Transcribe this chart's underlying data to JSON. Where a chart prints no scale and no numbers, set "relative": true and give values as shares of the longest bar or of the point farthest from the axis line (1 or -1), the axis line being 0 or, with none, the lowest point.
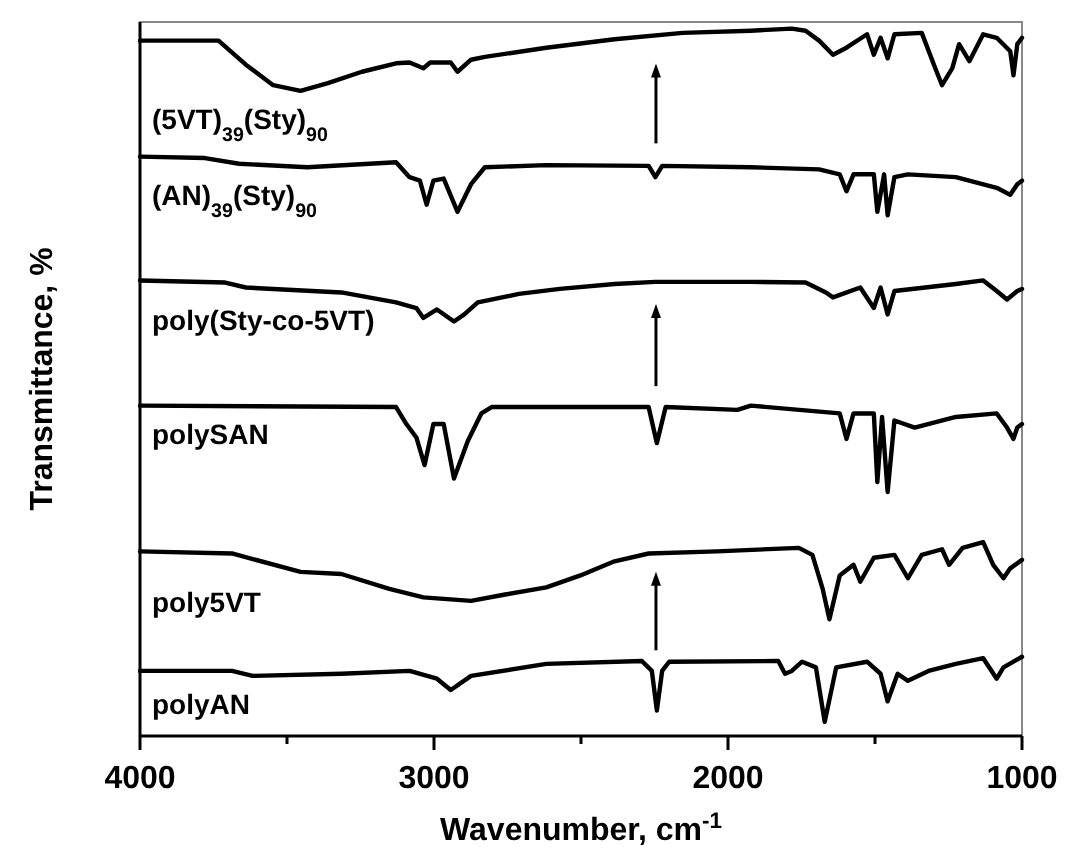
{
  "chart_data": {
    "type": "line",
    "relative": true,
    "xlabel": "Wavenumber, cm$^{-1}$",
    "ylabel": "Transmittance, %",
    "xlim": [
      4000,
      1000
    ],
    "xticks": [
      4000,
      {
        "value": 3500,
        "label": null
      },
      3000,
      {
        "value": 2500,
        "label": null
      },
      2000,
      {
        "value": 1500,
        "label": null
      },
      1000
    ],
    "tick_labels": "x",
    "line_style": "solid",
    "series": [
      {
        "name": "(5VT)$_{39}$(Sty)$_{90}$",
        "color": "#000000",
        "x": [
          4000,
          3733,
          3640,
          3547,
          3454,
          3361,
          3245,
          3129,
          3083,
          3036,
          3013,
          2943,
          2920,
          2874,
          2827,
          2618,
          2386,
          2154,
          1922,
          1783,
          1736,
          1690,
          1643,
          1597,
          1527,
          1504,
          1481,
          1457,
          1434,
          1341,
          1295,
          1272,
          1237,
          1214,
          1179,
          1132,
          1086,
          1040,
          1029,
          1016,
          1000
        ],
        "values": [
          0.983,
          0.983,
          0.949,
          0.92,
          0.912,
          0.923,
          0.939,
          0.951,
          0.952,
          0.944,
          0.952,
          0.952,
          0.939,
          0.956,
          0.96,
          0.973,
          0.985,
          0.994,
          0.997,
          1,
          0.997,
          0.983,
          0.963,
          0.973,
          0.992,
          0.963,
          0.987,
          0.958,
          0.992,
          0.994,
          0.944,
          0.92,
          0.944,
          0.978,
          0.954,
          0.992,
          0.987,
          0.968,
          0.934,
          0.978,
          0.987
        ]
      },
      {
        "name": "(AN)$_{39}$(Sty)$_{90}$",
        "color": "#000000",
        "x": [
          4000,
          3779,
          3663,
          3431,
          3129,
          3083,
          3048,
          3025,
          3002,
          2967,
          2920,
          2874,
          2827,
          2618,
          2270,
          2247,
          2224,
          1922,
          1690,
          1620,
          1597,
          1573,
          1504,
          1492,
          1469,
          1457,
          1434,
          1388,
          1225,
          1086,
          1040,
          1016,
          1000
        ],
        "values": [
          0.819,
          0.817,
          0.809,
          0.804,
          0.811,
          0.79,
          0.785,
          0.751,
          0.785,
          0.788,
          0.741,
          0.78,
          0.804,
          0.807,
          0.806,
          0.79,
          0.806,
          0.804,
          0.801,
          0.794,
          0.77,
          0.794,
          0.794,
          0.741,
          0.794,
          0.736,
          0.79,
          0.794,
          0.79,
          0.775,
          0.765,
          0.78,
          0.785
        ]
      },
      {
        "name": "poly(Sty-co-5VT)",
        "color": "#000000",
        "x": [
          4000,
          3710,
          3640,
          3315,
          3129,
          3060,
          3036,
          2990,
          2932,
          2897,
          2851,
          2711,
          2572,
          2386,
          2247,
          1922,
          1736,
          1667,
          1643,
          1550,
          1504,
          1481,
          1457,
          1434,
          1225,
          1132,
          1086,
          1051,
          1016,
          1000
        ],
        "values": [
          0.644,
          0.641,
          0.634,
          0.627,
          0.613,
          0.605,
          0.591,
          0.603,
          0.586,
          0.596,
          0.613,
          0.625,
          0.632,
          0.639,
          0.642,
          0.642,
          0.641,
          0.627,
          0.62,
          0.634,
          0.605,
          0.634,
          0.596,
          0.629,
          0.639,
          0.644,
          0.629,
          0.617,
          0.629,
          0.632
        ]
      },
      {
        "name": "polySAN",
        "color": "#000000",
        "x": [
          4000,
          3129,
          3094,
          3060,
          3032,
          3002,
          2967,
          2932,
          2885,
          2839,
          2804,
          2270,
          2242,
          2212,
          1968,
          1922,
          1620,
          1597,
          1573,
          1504,
          1492,
          1476,
          1457,
          1434,
          1365,
          1225,
          1086,
          1051,
          1029,
          1016,
          1000
        ],
        "values": [
          0.467,
          0.465,
          0.441,
          0.422,
          0.383,
          0.441,
          0.441,
          0.364,
          0.417,
          0.456,
          0.465,
          0.465,
          0.414,
          0.465,
          0.461,
          0.467,
          0.456,
          0.42,
          0.456,
          0.456,
          0.359,
          0.451,
          0.345,
          0.446,
          0.436,
          0.451,
          0.456,
          0.436,
          0.42,
          0.436,
          0.441
        ]
      },
      {
        "name": "poly5VT",
        "color": "#000000",
        "x": [
          4000,
          3687,
          3454,
          3315,
          3152,
          3036,
          2874,
          2758,
          2618,
          2502,
          2386,
          2270,
          2038,
          1759,
          1713,
          1678,
          1655,
          1620,
          1573,
          1550,
          1504,
          1434,
          1388,
          1341,
          1272,
          1248,
          1202,
          1132,
          1098,
          1063,
          1040,
          1000
        ],
        "values": [
          0.261,
          0.258,
          0.232,
          0.229,
          0.208,
          0.196,
          0.191,
          0.2,
          0.21,
          0.227,
          0.247,
          0.258,
          0.261,
          0.266,
          0.256,
          0.208,
          0.165,
          0.227,
          0.242,
          0.218,
          0.252,
          0.256,
          0.223,
          0.256,
          0.264,
          0.242,
          0.266,
          0.274,
          0.242,
          0.223,
          0.237,
          0.249
        ]
      },
      {
        "name": "polyAN",
        "color": "#000000",
        "x": [
          4000,
          3687,
          3617,
          3315,
          3083,
          2990,
          2943,
          2874,
          2618,
          2293,
          2259,
          2242,
          2224,
          2200,
          1829,
          1806,
          1783,
          1748,
          1701,
          1671,
          1632,
          1527,
          1481,
          1457,
          1423,
          1388,
          1318,
          1225,
          1132,
          1086,
          1063,
          1000
        ],
        "values": [
          0.092,
          0.092,
          0.085,
          0.088,
          0.092,
          0.081,
          0.065,
          0.085,
          0.102,
          0.106,
          0.092,
          0.036,
          0.092,
          0.105,
          0.106,
          0.088,
          0.092,
          0.105,
          0.097,
          0.02,
          0.097,
          0.105,
          0.088,
          0.049,
          0.088,
          0.078,
          0.092,
          0.102,
          0.11,
          0.081,
          0.097,
          0.112
        ]
      }
    ]
  }
}
